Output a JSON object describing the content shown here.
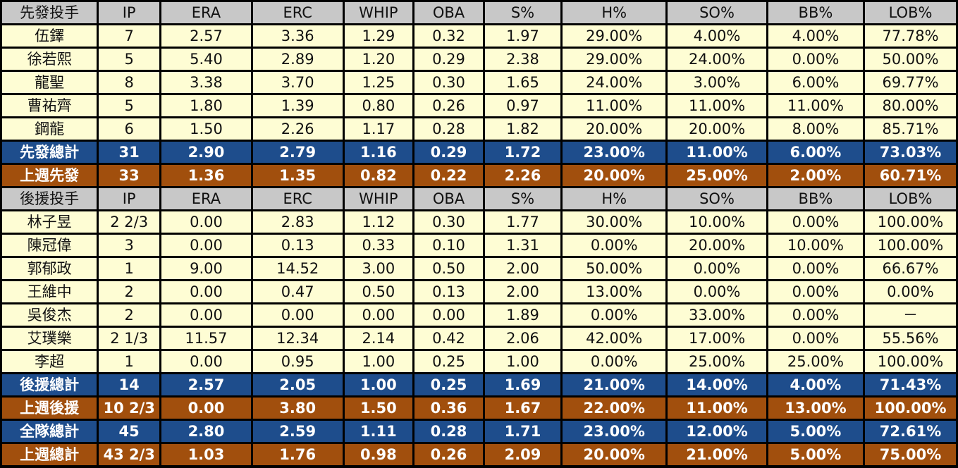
{
  "columns": [
    "IP",
    "ERA",
    "ERC",
    "WHIP",
    "OBA",
    "S%",
    "H%",
    "SO%",
    "BB%",
    "LOB%"
  ],
  "starters": {
    "header": "先發投手",
    "rows": [
      [
        "伍鐸",
        "7",
        "2.57",
        "3.36",
        "1.29",
        "0.32",
        "1.97",
        "29.00%",
        "4.00%",
        "4.00%",
        "77.78%"
      ],
      [
        "徐若熙",
        "5",
        "5.40",
        "2.89",
        "1.20",
        "0.29",
        "2.38",
        "29.00%",
        "24.00%",
        "0.00%",
        "50.00%"
      ],
      [
        "龍聖",
        "8",
        "3.38",
        "3.70",
        "1.25",
        "0.30",
        "1.65",
        "24.00%",
        "3.00%",
        "6.00%",
        "69.77%"
      ],
      [
        "曹祐齊",
        "5",
        "1.80",
        "1.39",
        "0.80",
        "0.26",
        "0.97",
        "11.00%",
        "11.00%",
        "11.00%",
        "80.00%"
      ],
      [
        "鋼龍",
        "6",
        "1.50",
        "2.26",
        "1.17",
        "0.28",
        "1.82",
        "20.00%",
        "20.00%",
        "8.00%",
        "85.71%"
      ]
    ],
    "total": [
      "先發總計",
      "31",
      "2.90",
      "2.79",
      "1.16",
      "0.29",
      "1.72",
      "23.00%",
      "11.00%",
      "6.00%",
      "73.03%"
    ],
    "last_week": [
      "上週先發",
      "33",
      "1.36",
      "1.35",
      "0.82",
      "0.22",
      "2.26",
      "20.00%",
      "25.00%",
      "2.00%",
      "60.71%"
    ]
  },
  "relievers": {
    "header": "後援投手",
    "rows": [
      [
        "林子昱",
        "2 2/3",
        "0.00",
        "2.83",
        "1.12",
        "0.30",
        "1.77",
        "30.00%",
        "10.00%",
        "0.00%",
        "100.00%"
      ],
      [
        "陳冠偉",
        "3",
        "0.00",
        "0.13",
        "0.33",
        "0.10",
        "1.31",
        "0.00%",
        "20.00%",
        "10.00%",
        "100.00%"
      ],
      [
        "郭郁政",
        "1",
        "9.00",
        "14.52",
        "3.00",
        "0.50",
        "2.00",
        "50.00%",
        "0.00%",
        "0.00%",
        "66.67%"
      ],
      [
        "王維中",
        "2",
        "0.00",
        "0.47",
        "0.50",
        "0.13",
        "2.00",
        "13.00%",
        "0.00%",
        "0.00%",
        "0.00%"
      ],
      [
        "吳俊杰",
        "2",
        "0.00",
        "0.00",
        "0.00",
        "0.00",
        "1.89",
        "0.00%",
        "33.00%",
        "0.00%",
        "－"
      ],
      [
        "艾璞樂",
        "2 1/3",
        "11.57",
        "12.34",
        "2.14",
        "0.42",
        "2.06",
        "42.00%",
        "17.00%",
        "0.00%",
        "55.56%"
      ],
      [
        "李超",
        "1",
        "0.00",
        "0.95",
        "1.00",
        "0.25",
        "1.00",
        "0.00%",
        "25.00%",
        "25.00%",
        "100.00%"
      ]
    ],
    "total": [
      "後援總計",
      "14",
      "2.57",
      "2.05",
      "1.00",
      "0.25",
      "1.69",
      "21.00%",
      "14.00%",
      "4.00%",
      "71.43%"
    ],
    "last_week": [
      "上週後援",
      "10 2/3",
      "0.00",
      "3.80",
      "1.50",
      "0.36",
      "1.67",
      "22.00%",
      "11.00%",
      "13.00%",
      "100.00%"
    ]
  },
  "team_total": [
    "全隊總計",
    "45",
    "2.80",
    "2.59",
    "1.11",
    "0.28",
    "1.71",
    "23.00%",
    "12.00%",
    "5.00%",
    "72.61%"
  ],
  "team_last_week": [
    "上週總計",
    "43 2/3",
    "1.03",
    "1.76",
    "0.98",
    "0.26",
    "2.09",
    "20.00%",
    "21.00%",
    "5.00%",
    "75.00%"
  ],
  "colors": {
    "header_bg": "#c8c8c8",
    "row_bg": "#fefdd4",
    "total_bg": "#1e4d8c",
    "last_week_bg": "#a14f0d",
    "grid": "#000000"
  }
}
